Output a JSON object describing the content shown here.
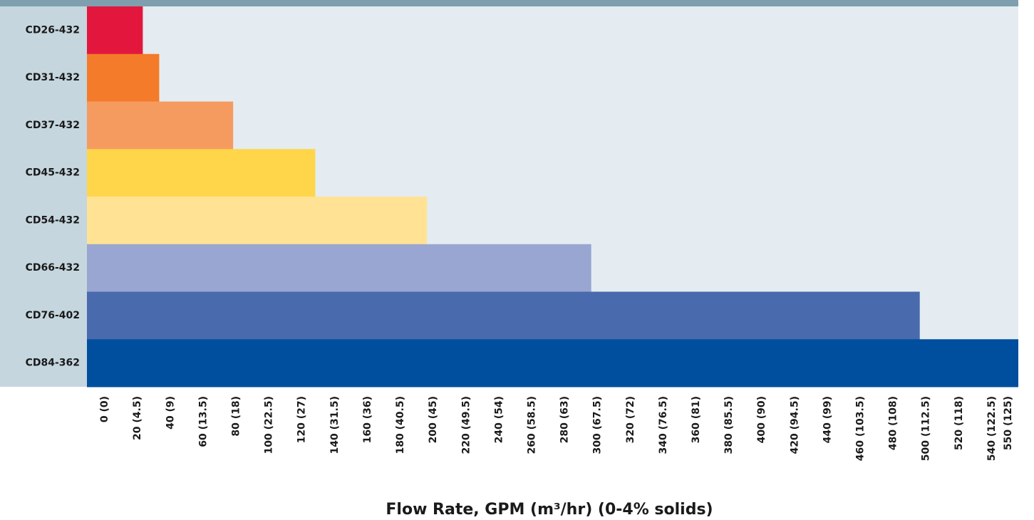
{
  "chart_data": {
    "type": "barh",
    "x_label": "Flow Rate, GPM (m³/hr) (0-4% solids)",
    "categories": [
      "CD26-432",
      "CD31-432",
      "CD37-432",
      "CD45-432",
      "CD54-432",
      "CD66-432",
      "CD76-402",
      "CD84-362"
    ],
    "values": [
      27,
      37,
      82,
      132,
      200,
      300,
      500,
      560
    ],
    "colors": [
      "#e3173e",
      "#f47b2a",
      "#f69b5f",
      "#ffd54a",
      "#ffe294",
      "#99a6d2",
      "#4a6aae",
      "#004f9e"
    ],
    "xlim": [
      -7,
      560
    ],
    "xticks": [
      {
        "value": 0,
        "label": "0 (0)"
      },
      {
        "value": 20,
        "label": "20 (4.5)"
      },
      {
        "value": 40,
        "label": "40 (9)"
      },
      {
        "value": 60,
        "label": "60 (13.5)"
      },
      {
        "value": 80,
        "label": "80 (18)"
      },
      {
        "value": 100,
        "label": "100 (22.5)"
      },
      {
        "value": 120,
        "label": "120 (27)"
      },
      {
        "value": 140,
        "label": "140 (31.5)"
      },
      {
        "value": 160,
        "label": "160 (36)"
      },
      {
        "value": 180,
        "label": "180 (40.5)"
      },
      {
        "value": 200,
        "label": "200 (45)"
      },
      {
        "value": 220,
        "label": "220 (49.5)"
      },
      {
        "value": 240,
        "label": "240 (54)"
      },
      {
        "value": 260,
        "label": "260 (58.5)"
      },
      {
        "value": 280,
        "label": "280 (63)"
      },
      {
        "value": 300,
        "label": "300 (67.5)"
      },
      {
        "value": 320,
        "label": "320 (72)"
      },
      {
        "value": 340,
        "label": "340 (76.5)"
      },
      {
        "value": 360,
        "label": "360 (81)"
      },
      {
        "value": 380,
        "label": "380 (85.5)"
      },
      {
        "value": 400,
        "label": "400 (90)"
      },
      {
        "value": 420,
        "label": "420 (94.5)"
      },
      {
        "value": 440,
        "label": "440 (99)"
      },
      {
        "value": 460,
        "label": "460 (103.5)"
      },
      {
        "value": 480,
        "label": "480 (108)"
      },
      {
        "value": 500,
        "label": "500 (112.5)"
      },
      {
        "value": 520,
        "label": "520 (118)"
      },
      {
        "value": 540,
        "label": "540 (122.5)"
      },
      {
        "value": 550,
        "label": "550 (125)"
      }
    ]
  }
}
